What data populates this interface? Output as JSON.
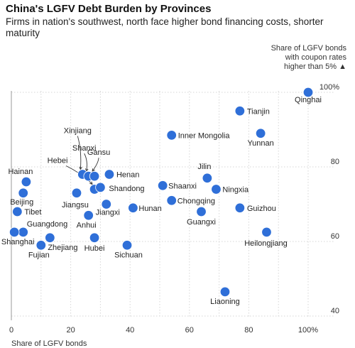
{
  "chart_data": {
    "type": "scatter",
    "title": "China's LGFV Debt Burden by Provinces",
    "subtitle": "Firms in nation's southwest, north face higher bond financing costs, shorter maturity",
    "ylabel": "Share of LGFV bonds with coupon rates higher than 5%",
    "ylabel_marker": "▲",
    "xlabel": "Share of LGFV bonds",
    "xlim": [
      0,
      100
    ],
    "ylim": [
      40,
      100
    ],
    "x_ticks": [
      "0",
      "20",
      "40",
      "60",
      "80",
      "100%"
    ],
    "y_ticks": [
      "40",
      "60",
      "80",
      "100%"
    ],
    "grid": true,
    "points": [
      {
        "label": "Qinghai",
        "x": 100,
        "y": 100
      },
      {
        "label": "Tianjin",
        "x": 77,
        "y": 95
      },
      {
        "label": "Yunnan",
        "x": 84,
        "y": 89
      },
      {
        "label": "Inner Mongolia",
        "x": 54,
        "y": 88.5
      },
      {
        "label": "Xinjiang",
        "x": 24,
        "y": 78
      },
      {
        "label": "Shanxi",
        "x": 26,
        "y": 77.5
      },
      {
        "label": "Gansu",
        "x": 28,
        "y": 77.5
      },
      {
        "label": "Hebei",
        "x": 28,
        "y": 74
      },
      {
        "label": "Henan",
        "x": 33,
        "y": 78
      },
      {
        "label": "Shandong",
        "x": 30,
        "y": 74.5
      },
      {
        "label": "Jiangsu",
        "x": 22,
        "y": 73
      },
      {
        "label": "Jiangxi",
        "x": 32,
        "y": 70
      },
      {
        "label": "Anhui",
        "x": 26,
        "y": 67
      },
      {
        "label": "Hunan",
        "x": 41,
        "y": 69
      },
      {
        "label": "Shaanxi",
        "x": 51,
        "y": 75
      },
      {
        "label": "Chongqing",
        "x": 54,
        "y": 71
      },
      {
        "label": "Jilin",
        "x": 66,
        "y": 77
      },
      {
        "label": "Ningxia",
        "x": 69,
        "y": 74
      },
      {
        "label": "Guangxi",
        "x": 64,
        "y": 68
      },
      {
        "label": "Guizhou",
        "x": 77,
        "y": 69
      },
      {
        "label": "Heilongjiang",
        "x": 86,
        "y": 62.5
      },
      {
        "label": "Hainan",
        "x": 5,
        "y": 76
      },
      {
        "label": "Beijing",
        "x": 4,
        "y": 73
      },
      {
        "label": "Tibet",
        "x": 2,
        "y": 68
      },
      {
        "label": "Guangdong",
        "x": 4,
        "y": 62.5
      },
      {
        "label": "Shanghai",
        "x": 1,
        "y": 62.5
      },
      {
        "label": "Zhejiang",
        "x": 13,
        "y": 61
      },
      {
        "label": "Fujian",
        "x": 10,
        "y": 59
      },
      {
        "label": "Hubei",
        "x": 28,
        "y": 61
      },
      {
        "label": "Sichuan",
        "x": 39,
        "y": 59
      },
      {
        "label": "Liaoning",
        "x": 72,
        "y": 46.5
      }
    ],
    "point_color": "#2f6fd8"
  }
}
